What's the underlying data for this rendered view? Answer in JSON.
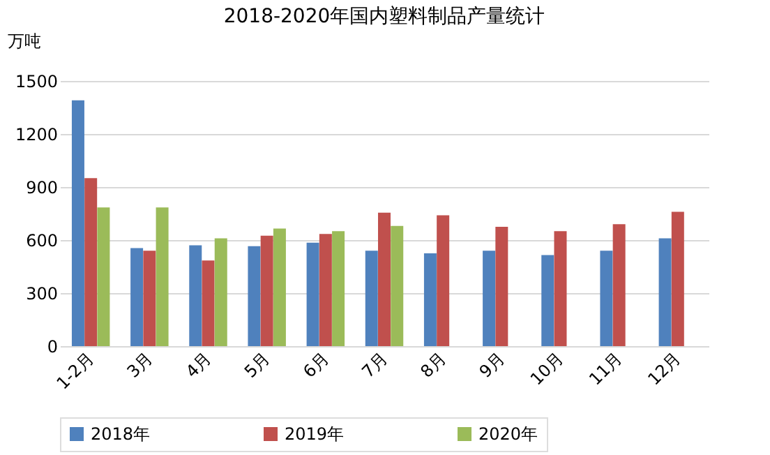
{
  "chart_data": {
    "type": "bar",
    "title": "2018-2020年国内塑料制品产量统计",
    "ylabel": "万吨",
    "categories": [
      "1-2月",
      "3月",
      "4月",
      "5月",
      "6月",
      "7月",
      "8月",
      "9月",
      "10月",
      "11月",
      "12月"
    ],
    "series": [
      {
        "name": "2018年",
        "color": "#4f81bd",
        "values": [
          1390,
          555,
          570,
          565,
          585,
          540,
          525,
          540,
          515,
          540,
          610
        ]
      },
      {
        "name": "2019年",
        "color": "#c0504d",
        "values": [
          950,
          540,
          485,
          625,
          635,
          755,
          740,
          675,
          650,
          690,
          760
        ]
      },
      {
        "name": "2020年",
        "color": "#9bbb59",
        "values": [
          785,
          785,
          610,
          665,
          650,
          680,
          null,
          null,
          null,
          null,
          null
        ]
      }
    ],
    "ylim": [
      0,
      1500
    ],
    "yticks": [
      0,
      300,
      600,
      900,
      1200,
      1500
    ],
    "grid": "y",
    "legend": "bottom"
  }
}
